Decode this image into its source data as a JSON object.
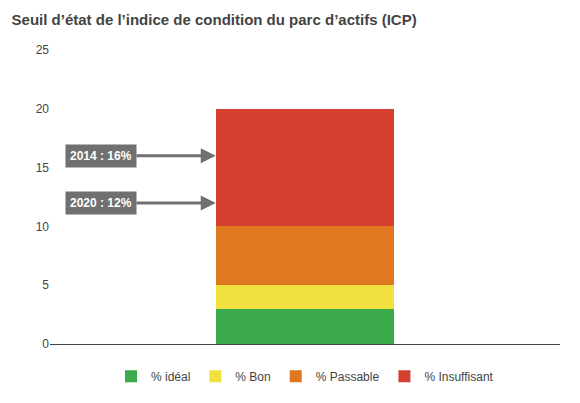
{
  "chart_data": {
    "type": "bar",
    "stacked": true,
    "title": "Seuil d’état de l’indice de condition du parc d’actifs (ICP)",
    "categories": [
      null
    ],
    "series": [
      {
        "name": "% idéal",
        "color": "#3aaa4a",
        "values": [
          3
        ]
      },
      {
        "name": "% Bon",
        "color": "#f0e040",
        "values": [
          2
        ]
      },
      {
        "name": "% Passable",
        "color": "#e07820",
        "values": [
          5
        ]
      },
      {
        "name": "% Insuffisant",
        "color": "#d44030",
        "values": [
          10
        ]
      }
    ],
    "annotations": [
      {
        "text": "2014 : 16%",
        "y": 16,
        "color": "#707070"
      },
      {
        "text": "2020 : 12%",
        "y": 12,
        "color": "#707070"
      }
    ],
    "ylim": [
      0,
      25
    ],
    "yticks": [
      0,
      5,
      10,
      15,
      20,
      25
    ],
    "grid": false,
    "legend": "bottom",
    "tick_labels": "y"
  }
}
